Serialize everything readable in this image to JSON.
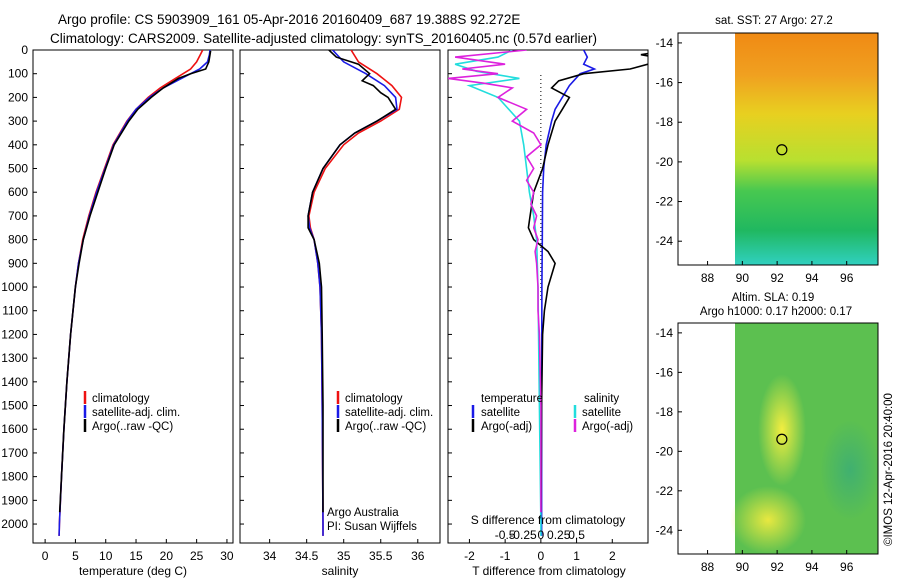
{
  "header": {
    "title_line1": "Argo profile: CS 5903909_161 05-Apr-2016 20160409_687 19.388S 92.272E",
    "title_line2": "Climatology: CARS2009. Satellite-adjusted climatology: synTS_20160405.nc (0.57d earlier)"
  },
  "colors": {
    "climatology": "#ee1111",
    "satellite": "#1a1ae6",
    "argo": "#000000",
    "salinity_satellite": "#22dddd",
    "salinity_argo": "#dd22dd"
  },
  "chart_data": [
    {
      "type": "line",
      "id": "temperature",
      "xlabel": "temperature (deg C)",
      "xlim": [
        -2,
        31
      ],
      "xticks": [
        0,
        5,
        10,
        15,
        20,
        25,
        30
      ],
      "ylim": [
        2080,
        0
      ],
      "yticks": [
        0,
        100,
        200,
        300,
        400,
        500,
        600,
        700,
        800,
        900,
        1000,
        1100,
        1200,
        1300,
        1400,
        1500,
        1600,
        1700,
        1800,
        1900,
        2000
      ],
      "legend": [
        "climatology",
        "satellite-adj. clim.",
        "Argo(..raw -QC)"
      ],
      "series": [
        {
          "name": "climatology",
          "color": "climatology",
          "depth": [
            0,
            20,
            50,
            80,
            120,
            160,
            200,
            250,
            300,
            400,
            500,
            600,
            700,
            800,
            900,
            1000,
            1200,
            1400,
            1600,
            1800,
            2000,
            2050
          ],
          "values": [
            26.0,
            25.6,
            25.0,
            24.0,
            21.5,
            19.0,
            17.0,
            15.0,
            13.5,
            11.2,
            9.8,
            8.4,
            7.2,
            6.2,
            5.5,
            5.0,
            4.2,
            3.6,
            3.1,
            2.7,
            2.35,
            2.3
          ]
        },
        {
          "name": "satellite-adj. clim.",
          "color": "satellite",
          "depth": [
            0,
            20,
            50,
            80,
            120,
            160,
            200,
            250,
            300,
            400,
            500,
            600,
            700,
            800,
            900,
            1000,
            1200,
            1400,
            1600,
            1800,
            2000,
            2050
          ],
          "values": [
            27.2,
            27.1,
            26.8,
            25.5,
            22.5,
            19.5,
            17.2,
            15.0,
            13.6,
            11.3,
            9.9,
            8.5,
            7.3,
            6.3,
            5.5,
            5.0,
            4.2,
            3.6,
            3.1,
            2.7,
            2.35,
            2.3
          ]
        },
        {
          "name": "Argo(..raw -QC)",
          "color": "argo",
          "depth": [
            4,
            20,
            50,
            80,
            100,
            120,
            160,
            200,
            250,
            300,
            400,
            500,
            600,
            700,
            800,
            900,
            1000,
            1200,
            1400,
            1600,
            1800,
            1950
          ],
          "values": [
            27.3,
            27.2,
            27.0,
            26.5,
            24.0,
            22.0,
            19.5,
            17.5,
            15.3,
            13.8,
            11.4,
            10.0,
            8.7,
            7.4,
            6.3,
            5.6,
            5.0,
            4.2,
            3.6,
            3.1,
            2.7,
            2.4
          ]
        }
      ]
    },
    {
      "type": "line",
      "id": "salinity",
      "xlabel": "salinity",
      "xlim": [
        33.6,
        36.3
      ],
      "xticks": [
        34,
        34.5,
        35,
        35.5,
        36
      ],
      "ylim": [
        2080,
        0
      ],
      "legend": [
        "climatology",
        "satellite-adj. clim.",
        "Argo(..raw -QC)"
      ],
      "annotation": [
        "Argo Australia",
        "PI: Susan Wijffels"
      ],
      "series": [
        {
          "name": "climatology",
          "color": "climatology",
          "depth": [
            0,
            50,
            100,
            150,
            200,
            250,
            300,
            350,
            400,
            500,
            600,
            700,
            750,
            800,
            900,
            1000,
            1200,
            1500,
            2000,
            2050
          ],
          "values": [
            35.1,
            35.2,
            35.45,
            35.65,
            35.78,
            35.75,
            35.5,
            35.2,
            35.0,
            34.75,
            34.6,
            34.53,
            34.55,
            34.6,
            34.65,
            34.68,
            34.7,
            34.71,
            34.72,
            34.72
          ]
        },
        {
          "name": "satellite-adj. clim.",
          "color": "satellite",
          "depth": [
            0,
            50,
            100,
            150,
            200,
            250,
            300,
            350,
            400,
            500,
            600,
            700,
            750,
            800,
            900,
            1000,
            1200,
            1500,
            2000,
            2050
          ],
          "values": [
            34.85,
            35.0,
            35.3,
            35.55,
            35.7,
            35.72,
            35.45,
            35.15,
            34.95,
            34.72,
            34.58,
            34.52,
            34.54,
            34.6,
            34.65,
            34.68,
            34.7,
            34.71,
            34.72,
            34.72
          ]
        },
        {
          "name": "Argo(..raw -QC)",
          "color": "argo",
          "depth": [
            0,
            30,
            60,
            100,
            130,
            150,
            180,
            200,
            250,
            300,
            350,
            400,
            500,
            600,
            700,
            750,
            800,
            900,
            1000,
            1200,
            1500,
            1950
          ],
          "values": [
            34.8,
            34.9,
            35.2,
            35.35,
            35.25,
            35.4,
            35.5,
            35.6,
            35.7,
            35.45,
            35.15,
            34.95,
            34.72,
            34.58,
            34.52,
            34.52,
            34.6,
            34.67,
            34.7,
            34.71,
            34.72,
            34.72
          ]
        }
      ]
    },
    {
      "type": "line",
      "id": "difference",
      "xlabel": "T difference from climatology",
      "xlabel_top": "S difference from climatology",
      "xlim": [
        -2.6,
        3.0
      ],
      "xticks": [
        -2,
        -1,
        0,
        1,
        2
      ],
      "sticks": [
        "-0.5",
        "-0.25",
        "0",
        "0.25",
        "0.5"
      ],
      "ylim": [
        2080,
        0
      ],
      "legend_left_title": "temperature",
      "legend_right_title": "salinity",
      "legend": [
        "satellite",
        "Argo(-adj)",
        "satellite",
        "Argo(-adj)"
      ],
      "series": [
        {
          "name": "satellite",
          "group": "temperature",
          "color": "satellite",
          "depth": [
            0,
            30,
            60,
            80,
            100,
            150,
            200,
            250,
            300,
            400,
            500,
            600,
            800,
            1000,
            1500,
            2000,
            2050
          ],
          "values": [
            1.2,
            1.3,
            1.2,
            1.5,
            1.1,
            0.8,
            0.6,
            0.4,
            0.3,
            0.15,
            0.08,
            0.05,
            0.04,
            0.03,
            0.02,
            0.02,
            0.02
          ]
        },
        {
          "name": "Argo(-adj)",
          "group": "temperature",
          "color": "argo",
          "depth": [
            4,
            20,
            40,
            60,
            80,
            100,
            130,
            160,
            200,
            250,
            300,
            400,
            500,
            600,
            700,
            750,
            800,
            850,
            900,
            1000,
            1100,
            1200,
            1500,
            1800,
            1950
          ],
          "values": [
            3.5,
            2.8,
            3.6,
            3.0,
            2.5,
            1.2,
            0.5,
            0.3,
            0.8,
            0.6,
            0.4,
            0.2,
            0.05,
            -0.2,
            -0.3,
            -0.35,
            -0.2,
            0.2,
            0.4,
            0.2,
            0.1,
            0.05,
            0.02,
            0.01,
            0.0
          ]
        },
        {
          "name": "satellite",
          "group": "salinity",
          "color": "salinity_satellite",
          "depth": [
            0,
            30,
            60,
            90,
            120,
            150,
            200,
            300,
            400,
            500,
            600,
            700,
            800,
            1000,
            1500,
            2000,
            2050
          ],
          "values": [
            -0.2,
            -0.3,
            -0.6,
            -0.45,
            -0.15,
            -0.5,
            -0.3,
            -0.15,
            -0.12,
            -0.1,
            -0.08,
            -0.05,
            -0.03,
            -0.02,
            -0.01,
            0.0,
            0.0
          ]
        },
        {
          "name": "Argo(-adj)",
          "group": "salinity",
          "color": "salinity_argo",
          "depth": [
            0,
            30,
            60,
            80,
            100,
            120,
            140,
            160,
            200,
            250,
            300,
            350,
            400,
            450,
            500,
            550,
            600,
            650,
            700,
            750,
            800,
            850,
            900,
            1000,
            1100,
            1200,
            1500,
            1800,
            1950
          ],
          "values": [
            -0.1,
            -0.6,
            -0.25,
            -0.55,
            -0.3,
            -0.65,
            -0.4,
            -0.2,
            -0.3,
            -0.1,
            -0.2,
            -0.05,
            0.0,
            -0.1,
            -0.05,
            -0.1,
            -0.05,
            -0.07,
            -0.03,
            -0.05,
            -0.02,
            -0.04,
            -0.03,
            -0.02,
            -0.02,
            -0.01,
            0.0,
            0.0,
            0.0
          ]
        }
      ]
    },
    {
      "type": "heatmap",
      "id": "sst_map",
      "title": "sat. SST: 27  Argo: 27.2",
      "xticks": [
        88,
        90,
        92,
        94,
        96
      ],
      "yticks": [
        -14,
        -16,
        -18,
        -20,
        -22,
        -24
      ],
      "xlim": [
        86.3,
        97.8
      ],
      "ylim": [
        -25.2,
        -13.5
      ],
      "data_lon_range": [
        90,
        97.8
      ],
      "marker": {
        "lon": 92.272,
        "lat": -19.388
      }
    },
    {
      "type": "heatmap",
      "id": "sla_map",
      "title_line1": "Altim. SLA: 0.19",
      "title_line2": "Argo h1000: 0.17  h2000: 0.17",
      "xticks": [
        88,
        90,
        92,
        94,
        96
      ],
      "yticks": [
        -14,
        -16,
        -18,
        -20,
        -22,
        -24
      ],
      "xlim": [
        86.3,
        97.8
      ],
      "ylim": [
        -25.2,
        -13.5
      ],
      "data_lon_range": [
        90,
        97.8
      ],
      "marker": {
        "lon": 92.272,
        "lat": -19.388
      }
    }
  ],
  "footer": {
    "credit": "©IMOS 12-Apr-2016 20:40:00"
  }
}
